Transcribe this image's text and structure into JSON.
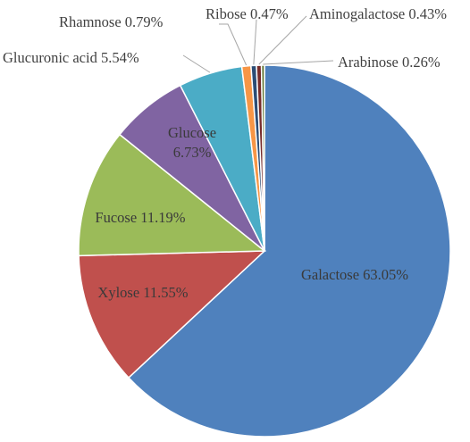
{
  "chart_data": {
    "type": "pie",
    "title": "",
    "slices": [
      {
        "name": "Galactose",
        "value": 63.05,
        "label": "Galactose 63.05%",
        "color": "#4f81bd"
      },
      {
        "name": "Xylose",
        "value": 11.55,
        "label": "Xylose 11.55%",
        "color": "#c0504d"
      },
      {
        "name": "Fucose",
        "value": 11.19,
        "label": "Fucose 11.19%",
        "color": "#9bbb59"
      },
      {
        "name": "Glucose",
        "value": 6.73,
        "label_lines": [
          "Glucose",
          "6.73%"
        ],
        "color": "#8064a2"
      },
      {
        "name": "Glucuronic acid",
        "value": 5.54,
        "label": "Glucuronic acid 5.54%",
        "color": "#4bacc6"
      },
      {
        "name": "Rhamnose",
        "value": 0.79,
        "label": "Rhamnose 0.79%",
        "color": "#f79646"
      },
      {
        "name": "Ribose",
        "value": 0.47,
        "label": "Ribose 0.47%",
        "color": "#2c4d75"
      },
      {
        "name": "Aminogalactose",
        "value": 0.43,
        "label": "Aminogalactose 0.43%",
        "color": "#772c2a"
      },
      {
        "name": "Arabinose",
        "value": 0.26,
        "label": "Arabinose 0.26%",
        "color": "#5f7530"
      }
    ]
  }
}
